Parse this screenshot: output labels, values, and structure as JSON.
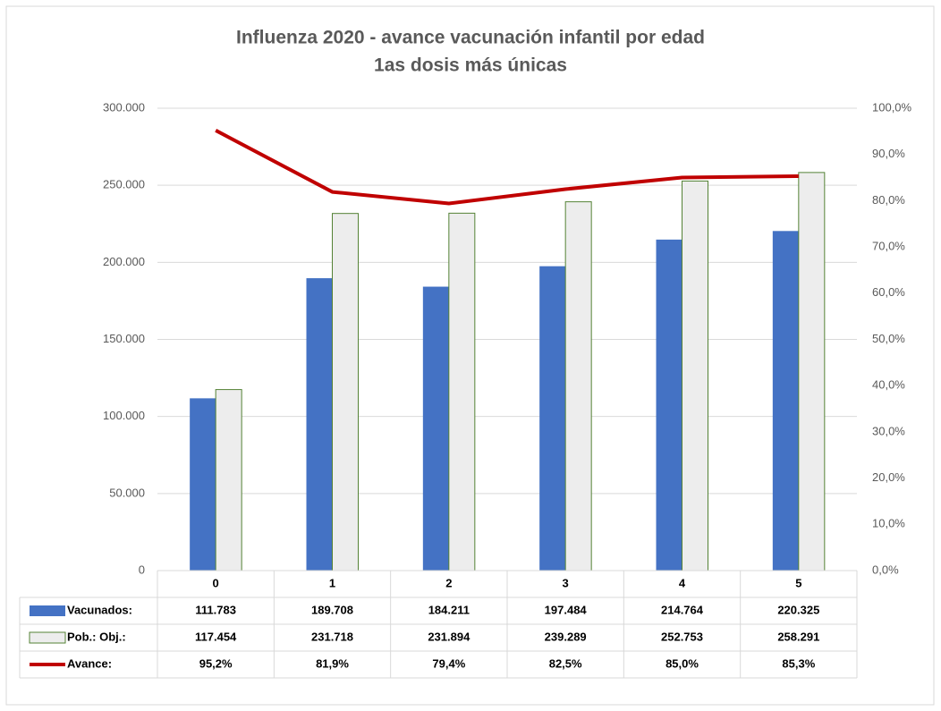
{
  "chart_data": {
    "type": "bar",
    "title": "Influenza 2020 - avance vacunación infantil por edad",
    "subtitle": "1as dosis más únicas",
    "categories": [
      "0",
      "1",
      "2",
      "3",
      "4",
      "5"
    ],
    "series": [
      {
        "name": "Vacunados:",
        "type": "bar",
        "color": "#4472c4",
        "values": [
          111783,
          189708,
          184211,
          197484,
          214764,
          220325
        ],
        "value_labels": [
          "111.783",
          "189.708",
          "184.211",
          "197.484",
          "214.764",
          "220.325"
        ]
      },
      {
        "name": "Pob.: Obj.:",
        "type": "bar",
        "color": "#ededed",
        "stroke": "#548235",
        "values": [
          117454,
          231718,
          231894,
          239289,
          252753,
          258291
        ],
        "value_labels": [
          "117.454",
          "231.718",
          "231.894",
          "239.289",
          "252.753",
          "258.291"
        ]
      },
      {
        "name": "Avance:",
        "type": "line",
        "axis": "y2",
        "color": "#c00000",
        "values": [
          95.2,
          81.9,
          79.4,
          82.5,
          85.0,
          85.3
        ],
        "value_labels": [
          "95,2%",
          "81,9%",
          "79,4%",
          "82,5%",
          "85,0%",
          "85,3%"
        ]
      }
    ],
    "ylim": [
      0,
      300000
    ],
    "yticks": [
      0,
      {
        "value": 50000,
        "label": "50.000"
      },
      {
        "value": 100000,
        "label": "100.000"
      },
      {
        "value": 150000,
        "label": "150.000"
      },
      {
        "value": 200000,
        "label": "200.000"
      },
      {
        "value": 250000,
        "label": "250.000"
      },
      {
        "value": 300000,
        "label": "300.000"
      }
    ],
    "y2lim": [
      0,
      100
    ],
    "y2ticks": [
      {
        "value": 0,
        "label": "0,0%"
      },
      {
        "value": 10,
        "label": "10,0%"
      },
      {
        "value": 20,
        "label": "20,0%"
      },
      {
        "value": 30,
        "label": "30,0%"
      },
      {
        "value": 40,
        "label": "40,0%"
      },
      {
        "value": 50,
        "label": "50,0%"
      },
      {
        "value": 60,
        "label": "60,0%"
      },
      {
        "value": 70,
        "label": "70,0%"
      },
      {
        "value": 80,
        "label": "80,0%"
      },
      {
        "value": 90,
        "label": "90,0%"
      },
      {
        "value": 100,
        "label": "100,0%"
      }
    ],
    "grid": true,
    "data_table": true
  }
}
